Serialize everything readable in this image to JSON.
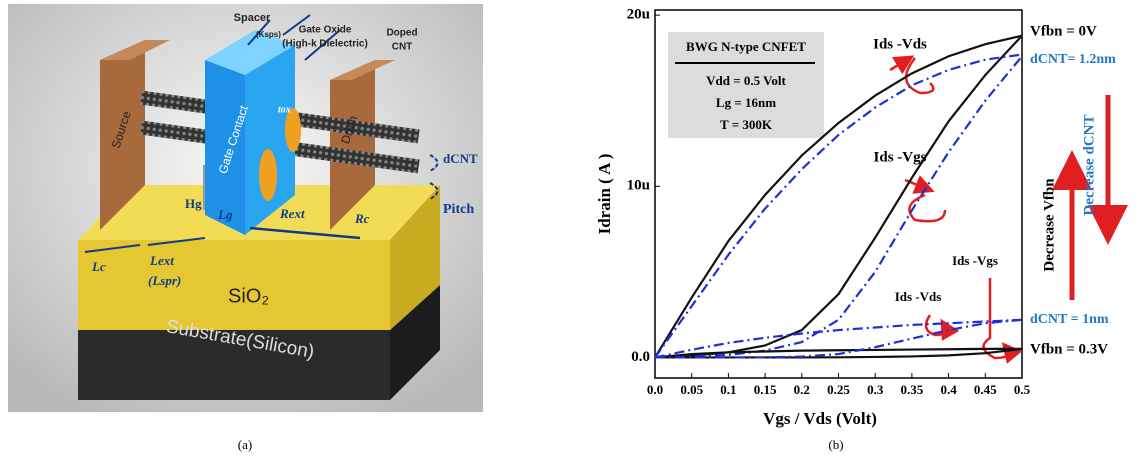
{
  "panel_a": {
    "labels": [
      "Spacer",
      "(Ksps)",
      "Gate Oxide",
      "(High-k Dielectric)",
      "Doped",
      "CNT",
      "Source",
      "Gate Contact",
      "Drain",
      "tox",
      "dCNT",
      "Pitch",
      "Hg",
      "Lg",
      "Rext",
      "Rc",
      "Lc",
      "Lext",
      "(Lspr)",
      "SiO₂",
      "Substrate(Silicon)"
    ],
    "caption": "(a)"
  },
  "chart_data": {
    "type": "line",
    "caption": "(b)",
    "x_label": "Vgs / Vds  (Volt)",
    "y_label": "Idrain ( A )",
    "x": [
      0,
      0.05,
      0.1,
      0.15,
      0.2,
      0.25,
      0.3,
      0.35,
      0.4,
      0.45,
      0.5
    ],
    "xlim": [
      0,
      0.5
    ],
    "ylim": [
      -1.2e-06,
      2.03e-05
    ],
    "xticks": [
      {
        "value": 0,
        "label": "0.0"
      },
      0.05,
      0.1,
      0.15,
      0.2,
      0.25,
      0.3,
      0.35,
      0.4,
      0.45,
      0.5
    ],
    "yticks": [
      {
        "value": 0,
        "label": "0.0"
      },
      {
        "value": 1e-05,
        "label": "10u"
      },
      {
        "value": 2e-05,
        "label": "20u"
      }
    ],
    "series": [
      {
        "color": "#111111",
        "line_style": "solid",
        "values": [
          0,
          3.5e-06,
          6.8e-06,
          9.5e-06,
          1.18e-05,
          1.37e-05,
          1.53e-05,
          1.66e-05,
          1.76e-05,
          1.83e-05,
          1.88e-05
        ]
      },
      {
        "color": "#111111",
        "line_style": "solid",
        "values": [
          0,
          1e-07,
          3e-07,
          7e-07,
          1.6e-06,
          3.7e-06,
          7e-06,
          1.05e-05,
          1.38e-05,
          1.65e-05,
          1.88e-05
        ]
      },
      {
        "color": "#1f2fd6",
        "line_style": "dash-dot",
        "values": [
          0,
          3e-06,
          6e-06,
          8.7e-06,
          1.1e-05,
          1.3e-05,
          1.46e-05,
          1.59e-05,
          1.68e-05,
          1.74e-05,
          1.77e-05
        ]
      },
      {
        "color": "#1f2fd6",
        "line_style": "dash-dot",
        "values": [
          0,
          5e-08,
          1.5e-07,
          4e-07,
          9e-07,
          2.2e-06,
          5e-06,
          8.6e-06,
          1.2e-05,
          1.5e-05,
          1.76e-05
        ]
      },
      {
        "color": "#111111",
        "line_style": "solid",
        "values": [
          0,
          2e-07,
          3e-07,
          3.5e-07,
          4e-07,
          4.2e-07,
          4.4e-07,
          4.6e-07,
          4.8e-07,
          5e-07,
          5e-07
        ]
      },
      {
        "color": "#111111",
        "line_style": "solid",
        "values": [
          0,
          0,
          0,
          0,
          0,
          1e-08,
          3e-08,
          6e-08,
          1.2e-07,
          2.5e-07,
          5e-07
        ]
      },
      {
        "color": "#1f2fd6",
        "line_style": "dash-dot",
        "values": [
          0,
          4.5e-07,
          8.5e-07,
          1.15e-06,
          1.4e-06,
          1.6e-06,
          1.75e-06,
          1.9e-06,
          2e-06,
          2.1e-06,
          2.2e-06
        ]
      },
      {
        "color": "#1f2fd6",
        "line_style": "dash-dot",
        "values": [
          0,
          0,
          0,
          0,
          5e-08,
          2e-07,
          6e-07,
          1.1e-06,
          1.6e-06,
          2e-06,
          2.2e-06
        ]
      }
    ],
    "info_box": [
      "BWG N-type CNFET",
      "Vdd = 0.5 Volt",
      "Lg = 16nm",
      "T = 300K"
    ],
    "annotations": [
      "Ids -Vds",
      "Ids -Vgs",
      "Ids -Vgs",
      "Ids -Vds",
      "Vfbn = 0V",
      "dCNT= 1.2nm",
      "dCNT = 1nm",
      "Vfbn = 0.3V",
      "Decrease Vfbn",
      "Decrease dCNT"
    ]
  }
}
